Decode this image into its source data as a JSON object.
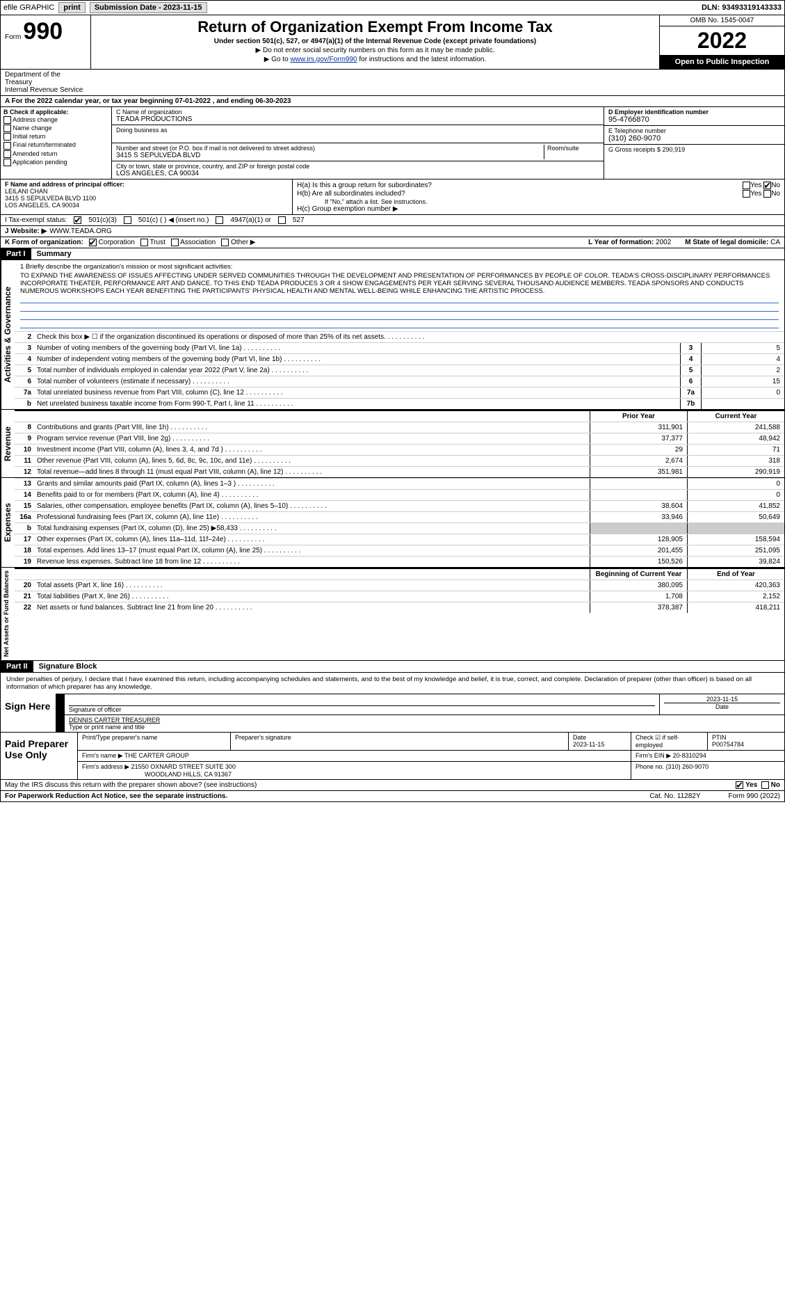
{
  "topbar": {
    "efile": "efile GRAPHIC",
    "print_btn": "print",
    "sub_label": "Submission Date - 2023-11-15",
    "dln": "DLN: 93493319143333"
  },
  "header": {
    "form_prefix": "Form",
    "form_num": "990",
    "title": "Return of Organization Exempt From Income Tax",
    "subtitle": "Under section 501(c), 527, or 4947(a)(1) of the Internal Revenue Code (except private foundations)",
    "note1": "▶ Do not enter social security numbers on this form as it may be made public.",
    "note2_pre": "▶ Go to ",
    "note2_link": "www.irs.gov/Form990",
    "note2_post": " for instructions and the latest information.",
    "omb": "OMB No. 1545-0047",
    "year": "2022",
    "open": "Open to Public Inspection",
    "dept": "Department of the Treasury",
    "irs": "Internal Revenue Service"
  },
  "section_a": "A For the 2022 calendar year, or tax year beginning 07-01-2022  , and ending 06-30-2023",
  "box_b": {
    "label": "B Check if applicable:",
    "opts": [
      "Address change",
      "Name change",
      "Initial return",
      "Final return/terminated",
      "Amended return",
      "Application pending"
    ]
  },
  "box_c": {
    "name_label": "C Name of organization",
    "name": "TEADA PRODUCTIONS",
    "dba_label": "Doing business as",
    "addr_label": "Number and street (or P.O. box if mail is not delivered to street address)",
    "room_label": "Room/suite",
    "addr": "3415 S SEPULVEDA BLVD",
    "city_label": "City or town, state or province, country, and ZIP or foreign postal code",
    "city": "LOS ANGELES, CA  90034"
  },
  "box_d": {
    "ein_label": "D Employer identification number",
    "ein": "95-4766870",
    "tel_label": "E Telephone number",
    "tel": "(310) 260-9070",
    "gross_label": "G Gross receipts $",
    "gross": "290,919"
  },
  "box_f": {
    "label": "F  Name and address of principal officer:",
    "name": "LEILANI CHAN",
    "addr1": "3415 S SEPULVEDA BLVD 1100",
    "addr2": "LOS ANGELES, CA  90034"
  },
  "box_h": {
    "ha": "H(a)  Is this a group return for subordinates?",
    "hb": "H(b)  Are all subordinates included?",
    "hb_note": "If \"No,\" attach a list. See instructions.",
    "hc": "H(c)  Group exemption number ▶",
    "yes": "Yes",
    "no": "No"
  },
  "row_i": {
    "label": "I   Tax-exempt status:",
    "opts": [
      "501(c)(3)",
      "501(c) (  ) ◀ (insert no.)",
      "4947(a)(1) or",
      "527"
    ]
  },
  "row_j": {
    "label": "J   Website: ▶",
    "val": "WWW.TEADA.ORG"
  },
  "row_k": {
    "label": "K Form of organization:",
    "opts": [
      "Corporation",
      "Trust",
      "Association",
      "Other ▶"
    ],
    "l_label": "L Year of formation:",
    "l_val": "2002",
    "m_label": "M State of legal domicile:",
    "m_val": "CA"
  },
  "part1": {
    "header": "Part I",
    "title": "Summary"
  },
  "mission": {
    "intro": "1   Briefly describe the organization's mission or most significant activities:",
    "text": "TO EXPAND THE AWARENESS OF ISSUES AFFECTING UNDER SERVED COMMUNITIES THROUGH THE DEVELOPMENT AND PRESENTATION OF PERFORMANCES BY PEOPLE OF COLOR. TEADA'S CROSS-DISCIPLINARY PERFORMANCES INCORPORATE THEATER, PERFORMANCE ART AND DANCE. TO THIS END TEADA PRODUCES 3 OR 4 SHOW ENGAGEMENTS PER YEAR SERVING SEVERAL THOUSAND AUDIENCE MEMBERS. TEADA SPONSORS AND CONDUCTS NUMEROUS WORKSHOPS EACH YEAR BENEFITING THE PARTICIPANTS' PHYSICAL HEALTH AND MENTAL WELL-BEING WHILE ENHANCING THE ARTISTIC PROCESS."
  },
  "gov_rows": [
    {
      "ln": "2",
      "desc": "Check this box ▶ ☐ if the organization discontinued its operations or disposed of more than 25% of its net assets."
    },
    {
      "ln": "3",
      "desc": "Number of voting members of the governing body (Part VI, line 1a)",
      "box": "3",
      "val": "5"
    },
    {
      "ln": "4",
      "desc": "Number of independent voting members of the governing body (Part VI, line 1b)",
      "box": "4",
      "val": "4"
    },
    {
      "ln": "5",
      "desc": "Total number of individuals employed in calendar year 2022 (Part V, line 2a)",
      "box": "5",
      "val": "2"
    },
    {
      "ln": "6",
      "desc": "Total number of volunteers (estimate if necessary)",
      "box": "6",
      "val": "15"
    },
    {
      "ln": "7a",
      "desc": "Total unrelated business revenue from Part VIII, column (C), line 12",
      "box": "7a",
      "val": "0"
    },
    {
      "ln": "b",
      "desc": "Net unrelated business taxable income from Form 990-T, Part I, line 11",
      "box": "7b",
      "val": ""
    }
  ],
  "fin_headers": {
    "prior": "Prior Year",
    "curr": "Current Year"
  },
  "revenue_rows": [
    {
      "ln": "8",
      "desc": "Contributions and grants (Part VIII, line 1h)",
      "prior": "311,901",
      "curr": "241,588"
    },
    {
      "ln": "9",
      "desc": "Program service revenue (Part VIII, line 2g)",
      "prior": "37,377",
      "curr": "48,942"
    },
    {
      "ln": "10",
      "desc": "Investment income (Part VIII, column (A), lines 3, 4, and 7d )",
      "prior": "29",
      "curr": "71"
    },
    {
      "ln": "11",
      "desc": "Other revenue (Part VIII, column (A), lines 5, 6d, 8c, 9c, 10c, and 11e)",
      "prior": "2,674",
      "curr": "318"
    },
    {
      "ln": "12",
      "desc": "Total revenue—add lines 8 through 11 (must equal Part VIII, column (A), line 12)",
      "prior": "351,981",
      "curr": "290,919"
    }
  ],
  "expense_rows": [
    {
      "ln": "13",
      "desc": "Grants and similar amounts paid (Part IX, column (A), lines 1–3 )",
      "prior": "",
      "curr": "0"
    },
    {
      "ln": "14",
      "desc": "Benefits paid to or for members (Part IX, column (A), line 4)",
      "prior": "",
      "curr": "0"
    },
    {
      "ln": "15",
      "desc": "Salaries, other compensation, employee benefits (Part IX, column (A), lines 5–10)",
      "prior": "38,604",
      "curr": "41,852"
    },
    {
      "ln": "16a",
      "desc": "Professional fundraising fees (Part IX, column (A), line 11e)",
      "prior": "33,946",
      "curr": "50,649"
    },
    {
      "ln": "b",
      "desc": "Total fundraising expenses (Part IX, column (D), line 25) ▶58,433",
      "prior": "shaded",
      "curr": "shaded"
    },
    {
      "ln": "17",
      "desc": "Other expenses (Part IX, column (A), lines 11a–11d, 11f–24e)",
      "prior": "128,905",
      "curr": "158,594"
    },
    {
      "ln": "18",
      "desc": "Total expenses. Add lines 13–17 (must equal Part IX, column (A), line 25)",
      "prior": "201,455",
      "curr": "251,095"
    },
    {
      "ln": "19",
      "desc": "Revenue less expenses. Subtract line 18 from line 12",
      "prior": "150,526",
      "curr": "39,824"
    }
  ],
  "net_headers": {
    "prior": "Beginning of Current Year",
    "curr": "End of Year"
  },
  "net_rows": [
    {
      "ln": "20",
      "desc": "Total assets (Part X, line 16)",
      "prior": "380,095",
      "curr": "420,363"
    },
    {
      "ln": "21",
      "desc": "Total liabilities (Part X, line 26)",
      "prior": "1,708",
      "curr": "2,152"
    },
    {
      "ln": "22",
      "desc": "Net assets or fund balances. Subtract line 21 from line 20",
      "prior": "378,387",
      "curr": "418,211"
    }
  ],
  "vert_labels": {
    "gov": "Activities & Governance",
    "rev": "Revenue",
    "exp": "Expenses",
    "net": "Net Assets or Fund Balances"
  },
  "part2": {
    "header": "Part II",
    "title": "Signature Block",
    "intro": "Under penalties of perjury, I declare that I have examined this return, including accompanying schedules and statements, and to the best of my knowledge and belief, it is true, correct, and complete. Declaration of preparer (other than officer) is based on all information of which preparer has any knowledge."
  },
  "sign": {
    "left": "Sign Here",
    "sig_label": "Signature of officer",
    "date": "2023-11-15",
    "date_label": "Date",
    "name": "DENNIS CARTER  TREASURER",
    "name_label": "Type or print name and title"
  },
  "prep": {
    "left": "Paid Preparer Use Only",
    "col1": "Print/Type preparer's name",
    "col2": "Preparer's signature",
    "col3_label": "Date",
    "col3": "2023-11-15",
    "col4_label": "Check ☑ if self-employed",
    "col5_label": "PTIN",
    "col5": "P00754784",
    "firm_label": "Firm's name    ▶",
    "firm": "THE CARTER GROUP",
    "ein_label": "Firm's EIN ▶",
    "ein": "20-8310294",
    "addr_label": "Firm's address ▶",
    "addr1": "21550 OXNARD STREET SUITE 300",
    "addr2": "WOODLAND HILLS, CA  91367",
    "phone_label": "Phone no.",
    "phone": "(310) 260-9070"
  },
  "footer": {
    "discuss": "May the IRS discuss this return with the preparer shown above? (see instructions)",
    "yes": "Yes",
    "no": "No",
    "paperwork": "For Paperwork Reduction Act Notice, see the separate instructions.",
    "cat": "Cat. No. 11282Y",
    "form": "Form 990 (2022)"
  }
}
